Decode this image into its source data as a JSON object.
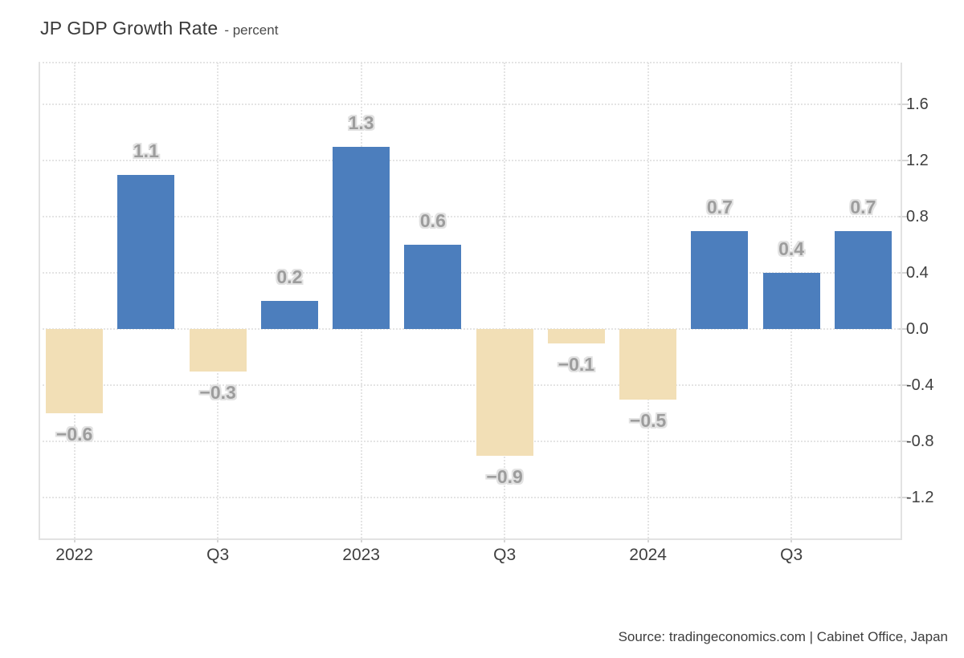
{
  "header": {
    "title": "JP GDP Growth Rate",
    "subtitle": "- percent"
  },
  "footer": {
    "source": "Source: tradingeconomics.com | Cabinet Office, Japan"
  },
  "chart_data": {
    "type": "bar",
    "title": "JP GDP Growth Rate",
    "ylabel": "percent",
    "values": [
      -0.6,
      1.1,
      -0.3,
      0.2,
      1.3,
      0.6,
      -0.9,
      -0.1,
      -0.5,
      0.7,
      0.4,
      0.7
    ],
    "bar_labels": [
      "−0.6",
      "1.1",
      "−0.3",
      "0.2",
      "1.3",
      "0.6",
      "−0.9",
      "−0.1",
      "−0.5",
      "0.7",
      "0.4",
      "0.7"
    ],
    "x_ticks": [
      {
        "label": "2022",
        "bar": 0
      },
      {
        "label": "Q3",
        "bar": 2
      },
      {
        "label": "2023",
        "bar": 4
      },
      {
        "label": "Q3",
        "bar": 6
      },
      {
        "label": "2024",
        "bar": 8
      },
      {
        "label": "Q3",
        "bar": 10
      }
    ],
    "y_ticks": [
      "1.6",
      "1.2",
      "0.8",
      "0.4",
      "0.0",
      "-0.4",
      "-0.8",
      "-1.2"
    ],
    "y_tick_values": [
      1.6,
      1.2,
      0.8,
      0.4,
      0.0,
      -0.4,
      -0.8,
      -1.2
    ],
    "ylim": [
      -1.49,
      1.9
    ],
    "grid": "dotted",
    "legend": "none",
    "axis_side": "right",
    "colors": {
      "positive": "#4c7ebd",
      "negative": "#f2dfb6",
      "grid": "#e4e4e4",
      "axis_text": "#3f3f3f"
    }
  }
}
